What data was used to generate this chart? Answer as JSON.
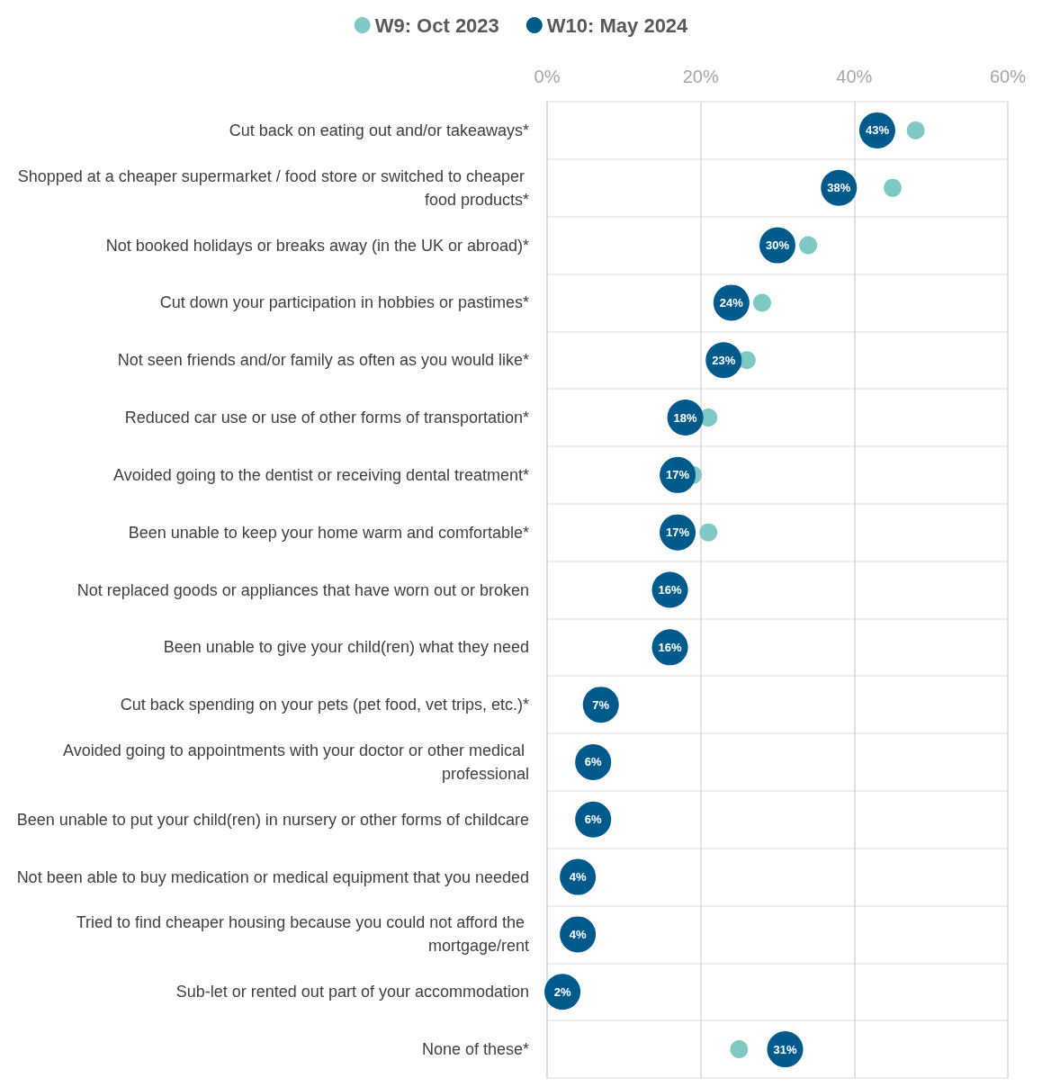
{
  "chart_data": {
    "type": "scatter",
    "orientation": "horizontal",
    "legend": "top",
    "grid": true,
    "marker": "circle",
    "categories": [
      "Cut back on eating out and/or takeaways*",
      "Shopped at a cheaper supermarket / food store or switched to cheaper food products*",
      "Not booked holidays or breaks away (in the UK or abroad)*",
      "Cut down your participation in hobbies or pastimes*",
      "Not seen friends and/or family as often as you would like*",
      "Reduced car use or use of other forms of transportation*",
      "Avoided going to the dentist or receiving dental treatment*",
      "Been unable to keep your home warm and comfortable*",
      "Not replaced goods or appliances that have worn out or broken",
      "Been unable to give your child(ren) what they need",
      "Cut back spending on your pets (pet food, vet trips, etc.)*",
      "Avoided going to appointments with your doctor or other medical professional",
      "Been unable to put your child(ren) in nursery or other forms of childcare",
      "Not been able to buy medication or medical equipment that you needed",
      "Tried to find cheaper housing because you could not afford the mortgage/rent",
      "Sub-let or rented out part of your accommodation",
      "None of these*"
    ],
    "xlim": [
      0,
      60
    ],
    "xticks": [
      {
        "value": 0,
        "label": "0%"
      },
      {
        "value": 20,
        "label": "20%"
      },
      {
        "value": 40,
        "label": "40%"
      },
      {
        "value": 60,
        "label": "60%"
      }
    ],
    "series": [
      {
        "name": "W9: Oct 2023",
        "color": "#7fc8c3",
        "values": [
          48,
          45,
          34,
          28,
          26,
          21,
          19,
          21,
          null,
          null,
          null,
          null,
          null,
          null,
          null,
          null,
          25
        ]
      },
      {
        "name": "W10: May 2024",
        "color": "#005b8c",
        "values": [
          43,
          38,
          30,
          24,
          23,
          18,
          17,
          17,
          16,
          16,
          7,
          6,
          6,
          4,
          4,
          2,
          31
        ],
        "value_labels": [
          "43%",
          "38%",
          "30%",
          "24%",
          "23%",
          "18%",
          "17%",
          "17%",
          "16%",
          "16%",
          "7%",
          "6%",
          "6%",
          "4%",
          "4%",
          "2%",
          "31%"
        ]
      }
    ]
  }
}
